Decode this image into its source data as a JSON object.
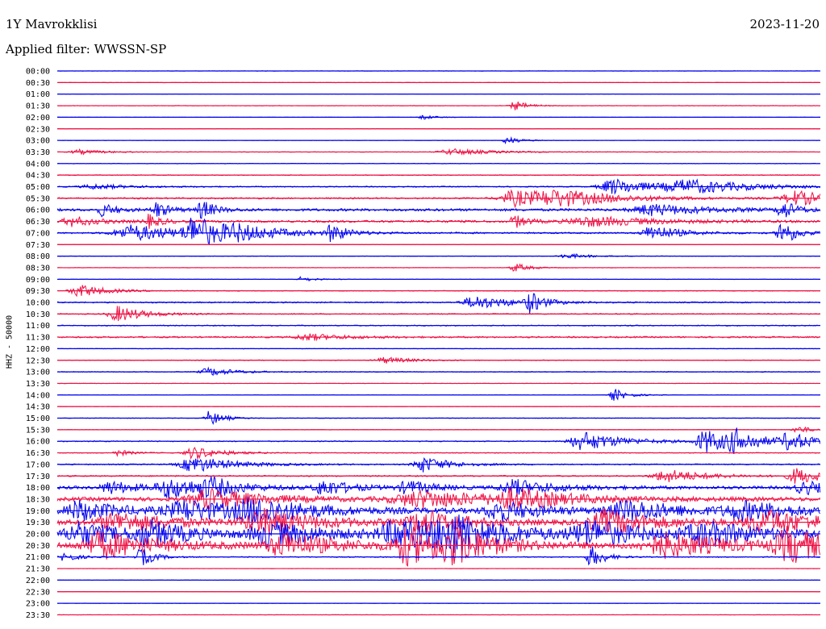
{
  "header": {
    "station": "1Y Mavrokklisi",
    "date": "2023-11-20",
    "filter": "Applied filter: WWSSN-SP"
  },
  "colors": {
    "trace_a": "#0000ee",
    "trace_b": "#ee1144"
  },
  "chart_data": {
    "type": "line",
    "title": "1Y Mavrokklisi",
    "subtitle": "Applied filter: WWSSN-SP",
    "ylabel": "HHZ - 50000",
    "xlabel": "",
    "grid": false,
    "rows": [
      {
        "label": "00:00",
        "color": "blue",
        "base": 0.3,
        "events": []
      },
      {
        "label": "00:30",
        "color": "red",
        "base": 0.4,
        "events": []
      },
      {
        "label": "01:00",
        "color": "blue",
        "base": 0.3,
        "events": []
      },
      {
        "label": "01:30",
        "color": "red",
        "base": 0.5,
        "events": [
          [
            0.6,
            0.01,
            6
          ]
        ]
      },
      {
        "label": "02:00",
        "color": "blue",
        "base": 0.2,
        "events": [
          [
            0.48,
            0.01,
            3
          ]
        ]
      },
      {
        "label": "02:30",
        "color": "red",
        "base": 0.4,
        "events": []
      },
      {
        "label": "03:00",
        "color": "blue",
        "base": 0.3,
        "events": [
          [
            0.59,
            0.01,
            5
          ]
        ]
      },
      {
        "label": "03:30",
        "color": "red",
        "base": 0.5,
        "events": [
          [
            0.03,
            0.02,
            3
          ],
          [
            0.52,
            0.03,
            4
          ]
        ]
      },
      {
        "label": "04:00",
        "color": "blue",
        "base": 0.6,
        "events": []
      },
      {
        "label": "04:30",
        "color": "red",
        "base": 0.8,
        "events": []
      },
      {
        "label": "05:00",
        "color": "blue",
        "base": 1.0,
        "events": [
          [
            0.05,
            0.03,
            3
          ],
          [
            0.73,
            0.03,
            10
          ],
          [
            0.83,
            0.05,
            8
          ]
        ]
      },
      {
        "label": "05:30",
        "color": "red",
        "base": 1.5,
        "events": [
          [
            0.6,
            0.03,
            10
          ],
          [
            0.66,
            0.05,
            8
          ],
          [
            0.97,
            0.03,
            9
          ]
        ]
      },
      {
        "label": "06:00",
        "color": "blue",
        "base": 2.5,
        "events": [
          [
            0.06,
            0.01,
            8
          ],
          [
            0.13,
            0.01,
            10
          ],
          [
            0.19,
            0.01,
            12
          ],
          [
            0.78,
            0.04,
            7
          ],
          [
            0.95,
            0.01,
            12
          ]
        ]
      },
      {
        "label": "06:30",
        "color": "red",
        "base": 2.2,
        "events": [
          [
            0.02,
            0.02,
            6
          ],
          [
            0.12,
            0.01,
            8
          ],
          [
            0.6,
            0.01,
            8
          ],
          [
            0.7,
            0.05,
            6
          ]
        ]
      },
      {
        "label": "07:00",
        "color": "blue",
        "base": 1.5,
        "events": [
          [
            0.1,
            0.04,
            10
          ],
          [
            0.18,
            0.02,
            20
          ],
          [
            0.24,
            0.04,
            7
          ],
          [
            0.36,
            0.01,
            12
          ],
          [
            0.78,
            0.02,
            10
          ],
          [
            0.95,
            0.01,
            18
          ]
        ]
      },
      {
        "label": "07:30",
        "color": "red",
        "base": 0.5,
        "events": []
      },
      {
        "label": "08:00",
        "color": "blue",
        "base": 0.4,
        "events": [
          [
            0.67,
            0.02,
            3
          ]
        ]
      },
      {
        "label": "08:30",
        "color": "red",
        "base": 0.4,
        "events": [
          [
            0.6,
            0.01,
            6
          ]
        ]
      },
      {
        "label": "09:00",
        "color": "blue",
        "base": 0.5,
        "events": [
          [
            0.32,
            0.01,
            3
          ]
        ]
      },
      {
        "label": "09:30",
        "color": "red",
        "base": 0.7,
        "events": [
          [
            0.03,
            0.02,
            8
          ]
        ]
      },
      {
        "label": "10:00",
        "color": "blue",
        "base": 1.2,
        "events": [
          [
            0.55,
            0.03,
            8
          ],
          [
            0.62,
            0.01,
            12
          ]
        ]
      },
      {
        "label": "10:30",
        "color": "red",
        "base": 1.0,
        "events": [
          [
            0.08,
            0.02,
            10
          ]
        ]
      },
      {
        "label": "11:00",
        "color": "blue",
        "base": 1.0,
        "events": []
      },
      {
        "label": "11:30",
        "color": "red",
        "base": 1.5,
        "events": [
          [
            0.33,
            0.03,
            4
          ]
        ]
      },
      {
        "label": "12:00",
        "color": "blue",
        "base": 0.5,
        "events": []
      },
      {
        "label": "12:30",
        "color": "red",
        "base": 0.8,
        "events": [
          [
            0.43,
            0.02,
            4
          ]
        ]
      },
      {
        "label": "13:00",
        "color": "blue",
        "base": 0.8,
        "events": [
          [
            0.2,
            0.02,
            5
          ]
        ]
      },
      {
        "label": "13:30",
        "color": "red",
        "base": 0.4,
        "events": []
      },
      {
        "label": "14:00",
        "color": "blue",
        "base": 0.4,
        "events": [
          [
            0.73,
            0.01,
            8
          ]
        ]
      },
      {
        "label": "14:30",
        "color": "red",
        "base": 0.4,
        "events": []
      },
      {
        "label": "15:00",
        "color": "blue",
        "base": 0.5,
        "events": [
          [
            0.2,
            0.01,
            10
          ]
        ]
      },
      {
        "label": "15:30",
        "color": "red",
        "base": 0.5,
        "events": [
          [
            0.97,
            0.01,
            5
          ]
        ]
      },
      {
        "label": "16:00",
        "color": "blue",
        "base": 1.0,
        "events": [
          [
            0.69,
            0.03,
            12
          ],
          [
            0.85,
            0.02,
            15
          ],
          [
            0.89,
            0.02,
            12
          ],
          [
            0.96,
            0.02,
            10
          ]
        ]
      },
      {
        "label": "16:30",
        "color": "red",
        "base": 0.8,
        "events": [
          [
            0.18,
            0.02,
            8
          ],
          [
            0.08,
            0.01,
            4
          ]
        ]
      },
      {
        "label": "17:00",
        "color": "blue",
        "base": 1.2,
        "events": [
          [
            0.18,
            0.03,
            10
          ],
          [
            0.48,
            0.02,
            10
          ]
        ]
      },
      {
        "label": "17:30",
        "color": "red",
        "base": 1.3,
        "events": [
          [
            0.8,
            0.03,
            8
          ],
          [
            0.97,
            0.02,
            10
          ]
        ]
      },
      {
        "label": "18:00",
        "color": "blue",
        "base": 3.0,
        "events": [
          [
            0.07,
            0.02,
            8
          ],
          [
            0.15,
            0.03,
            12
          ],
          [
            0.2,
            0.02,
            10
          ],
          [
            0.35,
            0.02,
            10
          ],
          [
            0.46,
            0.02,
            8
          ],
          [
            0.6,
            0.03,
            10
          ],
          [
            0.98,
            0.02,
            8
          ]
        ]
      },
      {
        "label": "18:30",
        "color": "red",
        "base": 4.0,
        "events": [
          [
            0.2,
            0.04,
            12
          ],
          [
            0.48,
            0.06,
            10
          ],
          [
            0.6,
            0.04,
            10
          ]
        ]
      },
      {
        "label": "19:00",
        "color": "blue",
        "base": 5.0,
        "events": [
          [
            0.03,
            0.03,
            12
          ],
          [
            0.17,
            0.04,
            12
          ],
          [
            0.26,
            0.04,
            14
          ],
          [
            0.58,
            0.03,
            12
          ],
          [
            0.75,
            0.04,
            12
          ],
          [
            0.9,
            0.04,
            10
          ]
        ]
      },
      {
        "label": "19:30",
        "color": "red",
        "base": 5.0,
        "events": [
          [
            0.08,
            0.04,
            12
          ],
          [
            0.27,
            0.04,
            15
          ],
          [
            0.48,
            0.03,
            14
          ],
          [
            0.72,
            0.04,
            14
          ],
          [
            0.93,
            0.04,
            14
          ]
        ]
      },
      {
        "label": "20:00",
        "color": "blue",
        "base": 5.5,
        "events": [
          [
            0.03,
            0.03,
            14
          ],
          [
            0.12,
            0.03,
            15
          ],
          [
            0.28,
            0.04,
            14
          ],
          [
            0.45,
            0.04,
            18
          ],
          [
            0.52,
            0.04,
            20
          ],
          [
            0.7,
            0.04,
            15
          ],
          [
            0.85,
            0.04,
            14
          ]
        ]
      },
      {
        "label": "20:30",
        "color": "red",
        "base": 5.5,
        "events": [
          [
            0.06,
            0.04,
            16
          ],
          [
            0.3,
            0.04,
            14
          ],
          [
            0.46,
            0.03,
            22
          ],
          [
            0.52,
            0.03,
            18
          ],
          [
            0.8,
            0.05,
            14
          ],
          [
            0.96,
            0.03,
            20
          ]
        ]
      },
      {
        "label": "21:00",
        "color": "blue",
        "base": 1.0,
        "events": [
          [
            0.01,
            0.01,
            6
          ],
          [
            0.11,
            0.01,
            12
          ],
          [
            0.7,
            0.01,
            14
          ]
        ]
      },
      {
        "label": "21:30",
        "color": "red",
        "base": 0.3,
        "events": []
      },
      {
        "label": "22:00",
        "color": "blue",
        "base": 0.4,
        "events": []
      },
      {
        "label": "22:30",
        "color": "red",
        "base": 0.3,
        "events": []
      },
      {
        "label": "23:00",
        "color": "blue",
        "base": 0.3,
        "events": []
      },
      {
        "label": "23:30",
        "color": "red",
        "base": 0.3,
        "events": []
      }
    ]
  }
}
